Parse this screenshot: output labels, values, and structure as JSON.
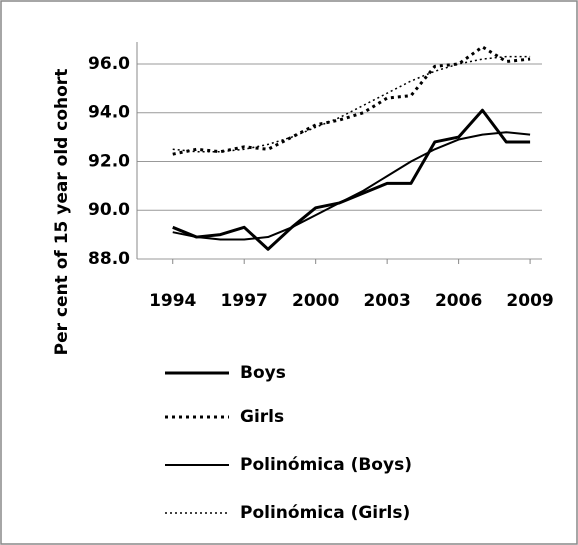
{
  "chart_data": {
    "type": "line",
    "y_label": "Per cent of 15 year old cohort",
    "x": [
      1994,
      1995,
      1996,
      1997,
      1998,
      1999,
      2000,
      2001,
      2002,
      2003,
      2004,
      2005,
      2006,
      2007,
      2008,
      2009
    ],
    "xlim": [
      1992.5,
      2009.5
    ],
    "xticks": [
      1994,
      1997,
      2000,
      2003,
      2006,
      2009
    ],
    "ylim": [
      88,
      96.9
    ],
    "yticks": [
      {
        "value": 88,
        "label": "88.0"
      },
      {
        "value": 90,
        "label": "90.0"
      },
      {
        "value": 92,
        "label": "92.0"
      },
      {
        "value": 94,
        "label": "94.0"
      },
      {
        "value": 96,
        "label": "96.0"
      }
    ],
    "grid": true,
    "legend": "bottom",
    "series": [
      {
        "name": "Boys",
        "color": "#000000",
        "dash": "solid",
        "width": 3,
        "values": [
          89.3,
          88.9,
          89.0,
          89.3,
          88.4,
          89.3,
          90.1,
          90.3,
          90.7,
          91.1,
          91.1,
          92.8,
          93.0,
          94.1,
          92.8,
          92.8
        ]
      },
      {
        "name": "Girls",
        "color": "#000000",
        "dash": "dotted",
        "width": 3,
        "values": [
          92.3,
          92.5,
          92.4,
          92.6,
          92.5,
          93.0,
          93.5,
          93.7,
          94.0,
          94.6,
          94.7,
          95.9,
          96.0,
          96.7,
          96.1,
          96.2
        ]
      },
      {
        "name": "Polinómica (Boys)",
        "color": "#000000",
        "dash": "solid",
        "width": 2,
        "values": [
          89.1,
          88.9,
          88.8,
          88.8,
          88.9,
          89.3,
          89.8,
          90.3,
          90.8,
          91.4,
          92.0,
          92.5,
          92.9,
          93.1,
          93.2,
          93.1
        ]
      },
      {
        "name": "Polinómica (Girls)",
        "color": "#000000",
        "dash": "dotted",
        "width": 1.5,
        "values": [
          92.5,
          92.4,
          92.4,
          92.5,
          92.7,
          93.0,
          93.4,
          93.8,
          94.3,
          94.8,
          95.3,
          95.7,
          96.0,
          96.2,
          96.3,
          96.3
        ]
      }
    ]
  }
}
